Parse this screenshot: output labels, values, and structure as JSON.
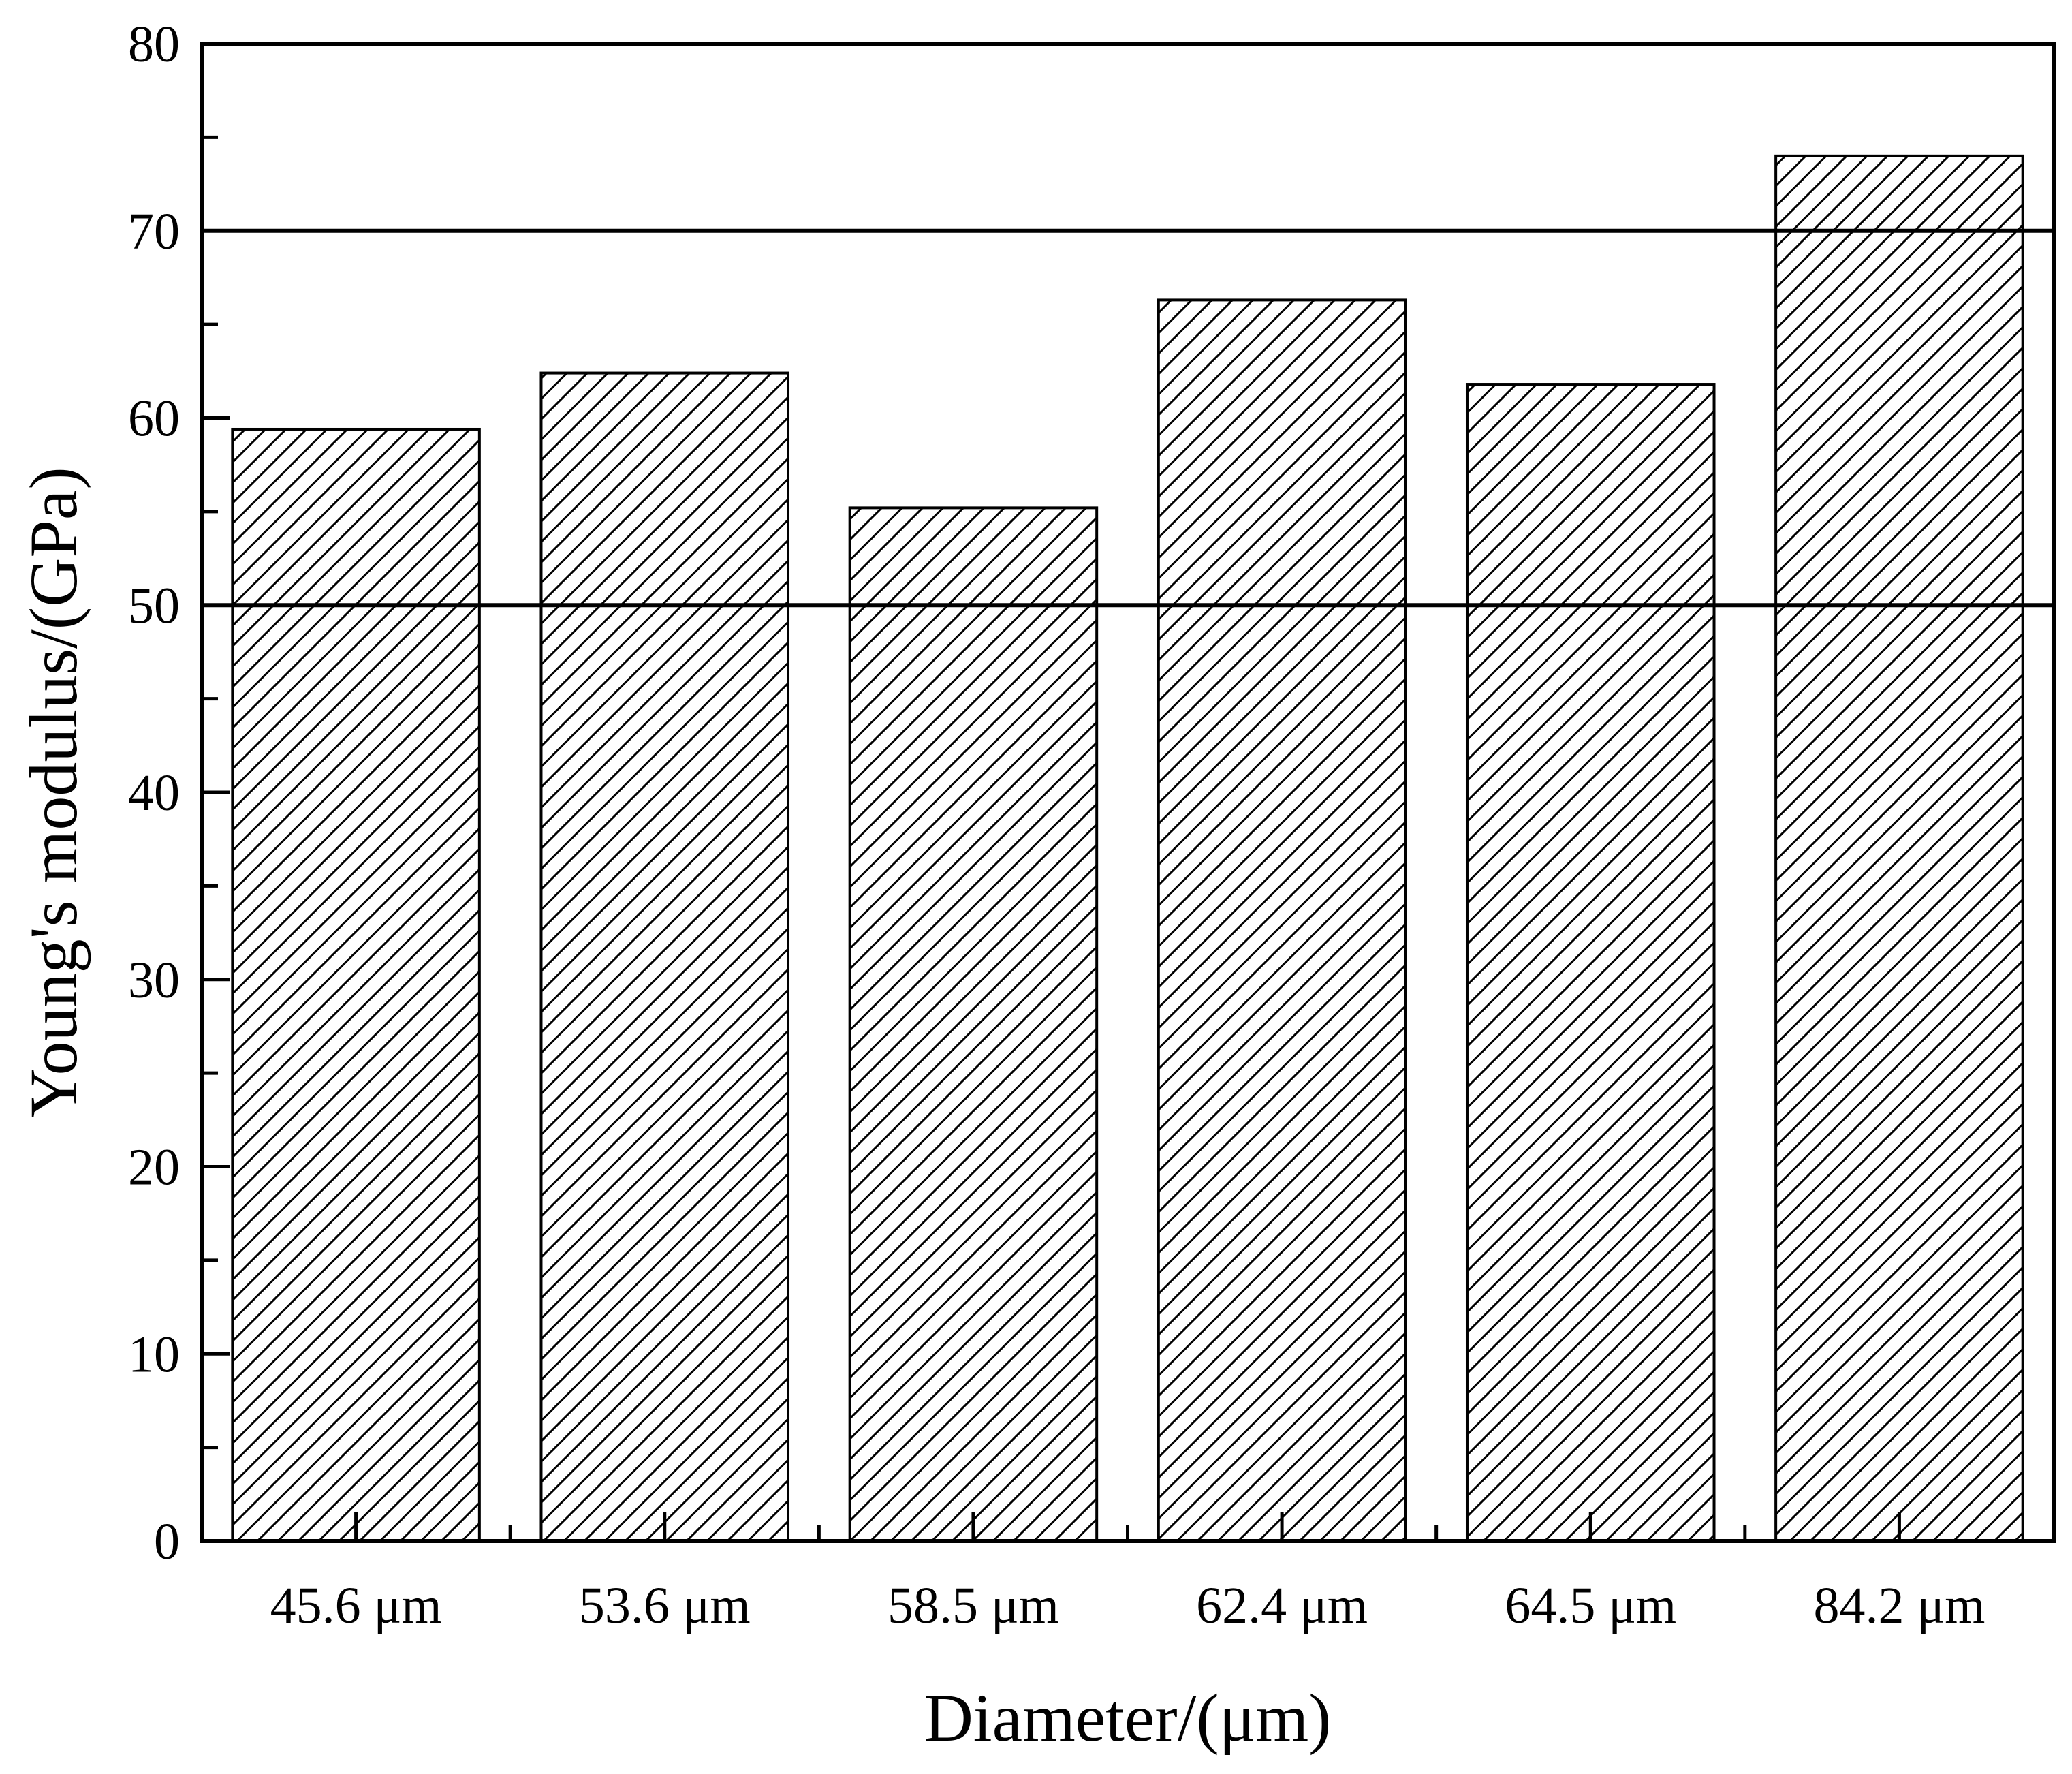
{
  "chart_data": {
    "type": "bar",
    "title": "",
    "xlabel": "Diameter/(μm)",
    "ylabel": "Young's modulus/(GPa)",
    "categories": [
      "45.6 μm",
      "53.6 μm",
      "58.5 μm",
      "62.4 μm",
      "64.5 μm",
      "84.2 μm"
    ],
    "values": [
      59.4,
      62.4,
      55.2,
      66.3,
      61.8,
      74.0
    ],
    "ylim": [
      0,
      80
    ],
    "yticks": [
      0,
      10,
      20,
      30,
      40,
      50,
      60,
      70,
      80
    ],
    "ytick_labels": [
      "0",
      "10",
      "20",
      "30",
      "40",
      "50",
      "60",
      "70",
      "80"
    ],
    "reference_lines": [
      50,
      70
    ],
    "bar_fill": "diagonal hatch",
    "grid": false,
    "colors": {
      "bar_edge": "#000000",
      "hatch": "#000000",
      "background": "#ffffff"
    }
  }
}
